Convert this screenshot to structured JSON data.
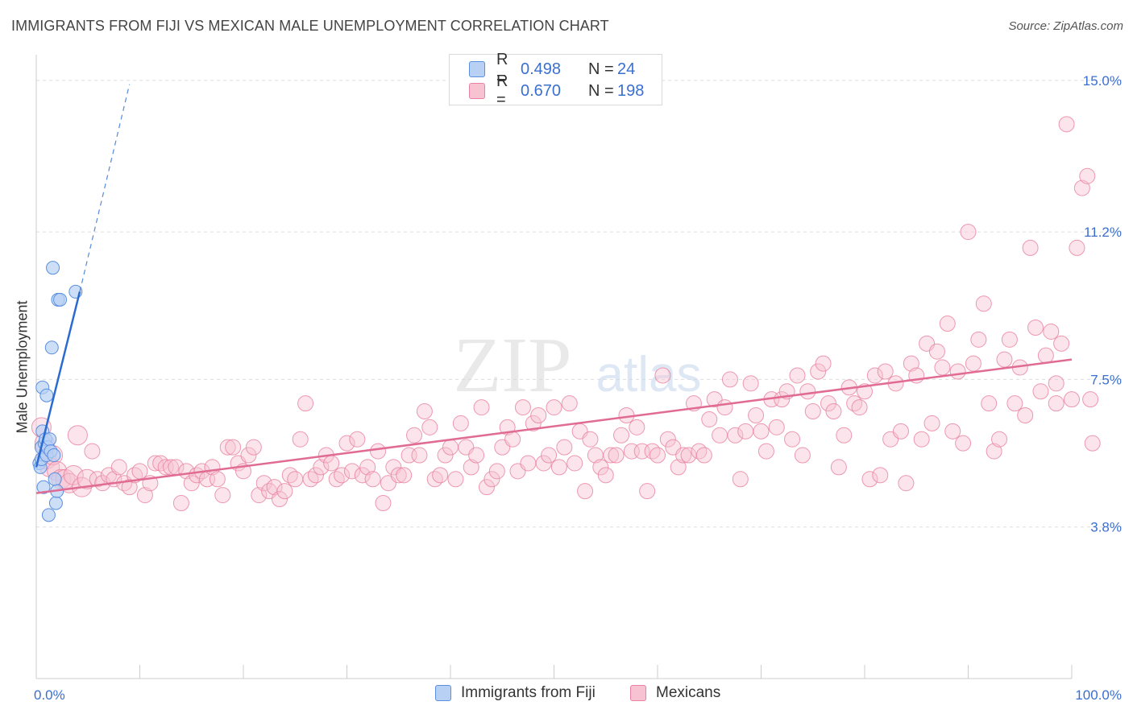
{
  "title": "IMMIGRANTS FROM FIJI VS MEXICAN MALE UNEMPLOYMENT CORRELATION CHART",
  "source": "Source: ZipAtlas.com",
  "watermark": {
    "zip": "ZIP",
    "atlas": "atlas"
  },
  "legend": {
    "series1": {
      "r_label": "R =",
      "r_value": "0.498",
      "n_label": "N =",
      "n_value": "24"
    },
    "series2": {
      "r_label": "R =",
      "r_value": "0.670",
      "n_label": "N =",
      "n_value": "198"
    }
  },
  "colors": {
    "fiji_fill": "#b8d0f4",
    "fiji_stroke": "#5b8fe0",
    "fiji_line": "#2a6bd1",
    "mex_fill": "#f7c3d3",
    "mex_stroke": "#e8819f",
    "mex_line": "#e06b93",
    "grid": "#dddddd",
    "axis_text": "#3a6fd0"
  },
  "chart_data": {
    "type": "scatter",
    "title": "IMMIGRANTS FROM FIJI VS MEXICAN MALE UNEMPLOYMENT CORRELATION CHART",
    "xlabel": "",
    "ylabel": "Male Unemployment",
    "xlim": [
      0,
      100
    ],
    "ylim": [
      0,
      15.4
    ],
    "x_tick_labels": [
      "0.0%",
      "100.0%"
    ],
    "y_ticks": [
      3.8,
      7.5,
      11.2,
      15.0
    ],
    "y_tick_labels": [
      "3.8%",
      "7.5%",
      "11.2%",
      "15.0%"
    ],
    "legend_position": "bottom",
    "series": [
      {
        "name": "Immigrants from Fiji",
        "r": 0.498,
        "n": 24,
        "trend": {
          "x0": 0.0,
          "y0": 5.3,
          "x1": 4.2,
          "y1": 9.7,
          "dash_to_x": 9.0,
          "dash_to_y": 14.9
        },
        "points": [
          [
            0.3,
            5.4
          ],
          [
            0.4,
            5.3
          ],
          [
            0.5,
            5.5
          ],
          [
            0.5,
            5.8
          ],
          [
            0.6,
            7.3
          ],
          [
            0.6,
            6.2
          ],
          [
            0.7,
            4.8
          ],
          [
            0.8,
            5.9
          ],
          [
            0.9,
            6.0
          ],
          [
            1.0,
            7.1
          ],
          [
            1.0,
            5.6
          ],
          [
            1.1,
            5.8
          ],
          [
            1.2,
            4.1
          ],
          [
            1.3,
            6.0
          ],
          [
            1.4,
            5.7
          ],
          [
            1.5,
            8.3
          ],
          [
            1.6,
            10.3
          ],
          [
            1.8,
            5.0
          ],
          [
            1.9,
            4.4
          ],
          [
            2.0,
            4.7
          ],
          [
            2.1,
            9.5
          ],
          [
            2.3,
            9.5
          ],
          [
            3.8,
            9.7
          ],
          [
            1.7,
            5.6
          ]
        ]
      },
      {
        "name": "Mexicans",
        "r": 0.67,
        "n": 198,
        "trend": {
          "x0": 0.0,
          "y0": 4.65,
          "x1": 100.0,
          "y1": 8.0
        },
        "points": [
          [
            0.5,
            6.3
          ],
          [
            0.8,
            5.9
          ],
          [
            1.0,
            5.5
          ],
          [
            1.3,
            5.3
          ],
          [
            1.6,
            5.6
          ],
          [
            2.0,
            5.2
          ],
          [
            2.4,
            5.0
          ],
          [
            2.8,
            5.0
          ],
          [
            3.2,
            4.9
          ],
          [
            3.6,
            5.1
          ],
          [
            4.0,
            6.1
          ],
          [
            4.4,
            4.8
          ],
          [
            4.9,
            5.0
          ],
          [
            5.4,
            5.7
          ],
          [
            5.9,
            5.0
          ],
          [
            6.4,
            4.9
          ],
          [
            7.0,
            5.1
          ],
          [
            7.5,
            5.0
          ],
          [
            8.0,
            5.3
          ],
          [
            8.5,
            4.9
          ],
          [
            9.0,
            4.8
          ],
          [
            9.5,
            5.1
          ],
          [
            10.0,
            5.2
          ],
          [
            10.5,
            4.6
          ],
          [
            11.0,
            4.9
          ],
          [
            11.5,
            5.4
          ],
          [
            12.0,
            5.4
          ],
          [
            12.5,
            5.3
          ],
          [
            13.0,
            5.3
          ],
          [
            13.5,
            5.3
          ],
          [
            14.0,
            4.4
          ],
          [
            14.5,
            5.2
          ],
          [
            15.0,
            4.9
          ],
          [
            15.5,
            5.1
          ],
          [
            16.0,
            5.2
          ],
          [
            16.5,
            5.0
          ],
          [
            17.0,
            5.3
          ],
          [
            17.5,
            5.0
          ],
          [
            18.0,
            4.6
          ],
          [
            18.5,
            5.8
          ],
          [
            19.0,
            5.8
          ],
          [
            19.5,
            5.4
          ],
          [
            20.0,
            5.2
          ],
          [
            20.5,
            5.6
          ],
          [
            21.0,
            5.8
          ],
          [
            21.5,
            4.6
          ],
          [
            22.0,
            4.9
          ],
          [
            22.5,
            4.7
          ],
          [
            23.0,
            4.8
          ],
          [
            23.5,
            4.5
          ],
          [
            24.0,
            4.7
          ],
          [
            24.5,
            5.1
          ],
          [
            25.0,
            5.0
          ],
          [
            25.5,
            6.0
          ],
          [
            26.0,
            6.9
          ],
          [
            26.5,
            5.0
          ],
          [
            27.0,
            5.1
          ],
          [
            27.5,
            5.3
          ],
          [
            28.0,
            5.6
          ],
          [
            28.5,
            5.4
          ],
          [
            29.0,
            5.0
          ],
          [
            29.5,
            5.1
          ],
          [
            30.0,
            5.9
          ],
          [
            30.5,
            5.2
          ],
          [
            31.0,
            6.0
          ],
          [
            31.5,
            5.1
          ],
          [
            32.0,
            5.3
          ],
          [
            32.5,
            5.0
          ],
          [
            33.0,
            5.7
          ],
          [
            33.5,
            4.4
          ],
          [
            34.0,
            4.9
          ],
          [
            34.5,
            5.3
          ],
          [
            35.0,
            5.1
          ],
          [
            35.5,
            5.1
          ],
          [
            36.0,
            5.6
          ],
          [
            36.5,
            6.1
          ],
          [
            37.0,
            5.6
          ],
          [
            37.5,
            6.7
          ],
          [
            38.0,
            6.3
          ],
          [
            38.5,
            5.0
          ],
          [
            39.0,
            5.1
          ],
          [
            39.5,
            5.6
          ],
          [
            40.0,
            5.8
          ],
          [
            40.5,
            5.0
          ],
          [
            41.0,
            6.4
          ],
          [
            41.5,
            5.8
          ],
          [
            42.0,
            5.3
          ],
          [
            42.5,
            5.6
          ],
          [
            43.0,
            6.8
          ],
          [
            43.5,
            4.8
          ],
          [
            44.0,
            5.0
          ],
          [
            44.5,
            5.2
          ],
          [
            45.0,
            5.8
          ],
          [
            45.5,
            6.3
          ],
          [
            46.0,
            6.0
          ],
          [
            46.5,
            5.2
          ],
          [
            47.0,
            6.8
          ],
          [
            47.5,
            5.4
          ],
          [
            48.0,
            6.4
          ],
          [
            48.5,
            6.6
          ],
          [
            49.0,
            5.4
          ],
          [
            49.5,
            5.6
          ],
          [
            50.0,
            6.8
          ],
          [
            50.5,
            5.3
          ],
          [
            51.0,
            5.8
          ],
          [
            51.5,
            6.9
          ],
          [
            52.0,
            5.4
          ],
          [
            52.5,
            6.2
          ],
          [
            53.0,
            4.7
          ],
          [
            53.5,
            6.0
          ],
          [
            54.0,
            5.6
          ],
          [
            54.5,
            5.3
          ],
          [
            55.0,
            5.1
          ],
          [
            55.5,
            5.6
          ],
          [
            56.0,
            5.6
          ],
          [
            56.5,
            6.1
          ],
          [
            57.0,
            6.6
          ],
          [
            57.5,
            5.7
          ],
          [
            58.0,
            6.3
          ],
          [
            58.5,
            5.7
          ],
          [
            59.0,
            4.7
          ],
          [
            59.5,
            5.7
          ],
          [
            60.0,
            5.6
          ],
          [
            60.5,
            7.6
          ],
          [
            61.0,
            6.0
          ],
          [
            61.5,
            5.8
          ],
          [
            62.0,
            5.3
          ],
          [
            62.5,
            5.6
          ],
          [
            63.0,
            5.6
          ],
          [
            63.5,
            6.9
          ],
          [
            64.0,
            5.7
          ],
          [
            64.5,
            5.6
          ],
          [
            65.0,
            6.5
          ],
          [
            65.5,
            7.0
          ],
          [
            66.0,
            6.1
          ],
          [
            66.5,
            6.8
          ],
          [
            67.0,
            7.5
          ],
          [
            67.5,
            6.1
          ],
          [
            68.0,
            5.0
          ],
          [
            68.5,
            6.2
          ],
          [
            69.0,
            7.4
          ],
          [
            69.5,
            6.6
          ],
          [
            70.0,
            6.2
          ],
          [
            70.5,
            5.7
          ],
          [
            71.0,
            7.0
          ],
          [
            71.5,
            6.3
          ],
          [
            72.0,
            7.0
          ],
          [
            72.5,
            7.2
          ],
          [
            73.0,
            6.0
          ],
          [
            73.5,
            7.6
          ],
          [
            74.0,
            5.6
          ],
          [
            74.5,
            7.2
          ],
          [
            75.0,
            6.7
          ],
          [
            75.5,
            7.7
          ],
          [
            76.0,
            7.9
          ],
          [
            76.5,
            6.9
          ],
          [
            77.0,
            6.7
          ],
          [
            77.5,
            5.3
          ],
          [
            78.0,
            6.1
          ],
          [
            78.5,
            7.3
          ],
          [
            79.0,
            6.9
          ],
          [
            79.5,
            6.8
          ],
          [
            80.0,
            7.2
          ],
          [
            80.5,
            5.0
          ],
          [
            81.0,
            7.6
          ],
          [
            81.5,
            5.1
          ],
          [
            82.0,
            7.7
          ],
          [
            82.5,
            6.0
          ],
          [
            83.0,
            7.4
          ],
          [
            83.5,
            6.2
          ],
          [
            84.0,
            4.9
          ],
          [
            84.5,
            7.9
          ],
          [
            85.0,
            7.6
          ],
          [
            85.5,
            6.0
          ],
          [
            86.0,
            8.4
          ],
          [
            86.5,
            6.4
          ],
          [
            87.0,
            8.2
          ],
          [
            87.5,
            7.8
          ],
          [
            88.0,
            8.9
          ],
          [
            88.5,
            6.2
          ],
          [
            89.0,
            7.7
          ],
          [
            89.5,
            5.9
          ],
          [
            90.0,
            11.2
          ],
          [
            90.5,
            7.9
          ],
          [
            91.0,
            8.5
          ],
          [
            91.5,
            9.4
          ],
          [
            92.0,
            6.9
          ],
          [
            92.5,
            5.7
          ],
          [
            93.0,
            6.0
          ],
          [
            93.5,
            8.0
          ],
          [
            94.0,
            8.5
          ],
          [
            94.5,
            6.9
          ],
          [
            95.0,
            7.8
          ],
          [
            95.5,
            6.6
          ],
          [
            96.0,
            10.8
          ],
          [
            96.5,
            8.8
          ],
          [
            97.0,
            7.2
          ],
          [
            97.5,
            8.1
          ],
          [
            98.0,
            8.7
          ],
          [
            98.5,
            7.4
          ],
          [
            99.0,
            8.4
          ],
          [
            99.5,
            13.9
          ],
          [
            100.0,
            7.0
          ],
          [
            100.5,
            10.8
          ],
          [
            101.0,
            12.3
          ],
          [
            101.5,
            12.6
          ],
          [
            101.8,
            7.0
          ],
          [
            102.0,
            5.9
          ],
          [
            98.5,
            6.9
          ]
        ]
      }
    ]
  },
  "bottom_legend": {
    "fiji": "Immigrants from Fiji",
    "mex": "Mexicans"
  }
}
